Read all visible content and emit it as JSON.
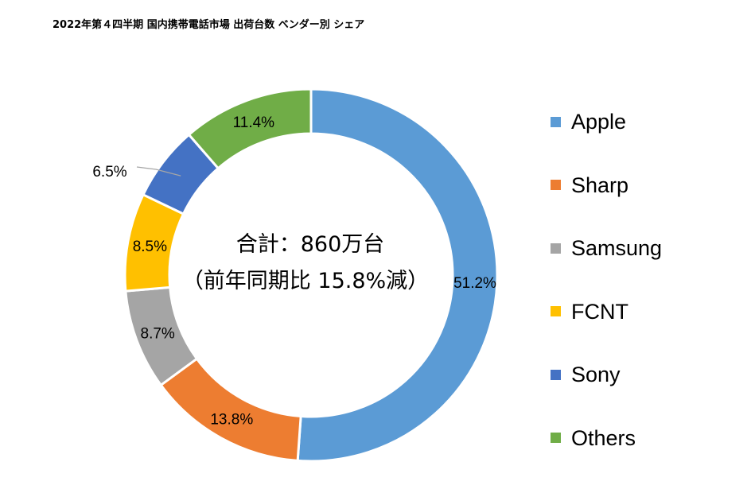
{
  "chart_data": {
    "type": "pie",
    "variant": "donut",
    "title": "2022年第４四半期 国内携帯電話市場 出荷台数 ベンダー別 シェア",
    "center_text": [
      "合計：860万台",
      "（前年同期比 15.8%減）"
    ],
    "categories": [
      "Apple",
      "Sharp",
      "Samsung",
      "FCNT",
      "Sony",
      "Others"
    ],
    "values": [
      51.2,
      13.8,
      8.7,
      8.5,
      6.5,
      11.4
    ],
    "data_labels": [
      "51.2%",
      "13.8%",
      "8.7%",
      "8.5%",
      "6.5%",
      "11.4%"
    ],
    "unit": "%",
    "colors": [
      "#5B9BD5",
      "#ED7D31",
      "#A5A5A5",
      "#FFC000",
      "#4472C4",
      "#70AD47"
    ],
    "start_angle": "12 o'clock",
    "direction": "clockwise",
    "legend_position": "right"
  }
}
